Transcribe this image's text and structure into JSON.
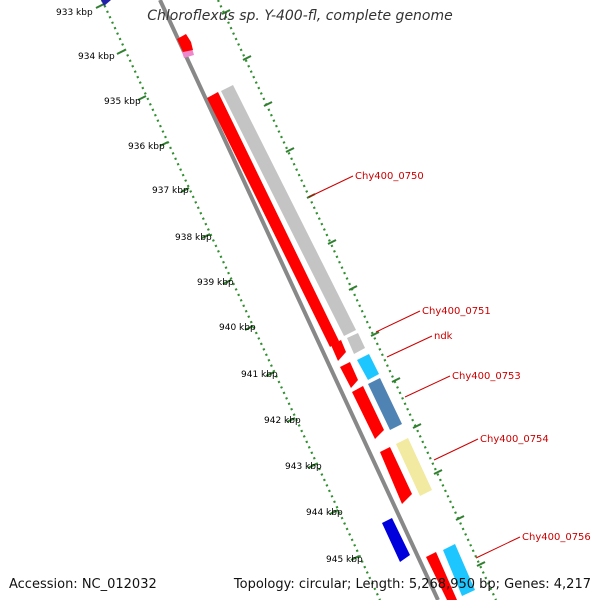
{
  "title": "Chloroflexus sp. Y-400-fl, complete genome",
  "accession": "Accession: NC_012032",
  "summary": "Topology: circular; Length: 5,268,950 bp; Genes: 4,217",
  "colors": {
    "background": "#ffffff",
    "backbone": "#888888",
    "tick_major": "#2f7f2f",
    "tick_minor": "#2f8f2f",
    "label": "#cc0000",
    "cds_red": "#ff0000",
    "cds_grey": "#c4c4c4",
    "cds_cyan": "#1ec6ff",
    "cds_steel": "#4f83b4",
    "cds_yellow": "#f2eaa0",
    "cds_blue": "#0000dd",
    "cds_pink": "#ee88cc"
  },
  "ticks": [
    "933 kbp",
    "934 kbp",
    "935 kbp",
    "936 kbp",
    "937 kbp",
    "938 kbp",
    "939 kbp",
    "940 kbp",
    "941 kbp",
    "942 kbp",
    "943 kbp",
    "944 kbp",
    "945 kbp"
  ],
  "gene_labels": [
    "Chy400_0750",
    "Chy400_0751",
    "ndk",
    "Chy400_0753",
    "Chy400_0754",
    "Chy400_0756"
  ]
}
